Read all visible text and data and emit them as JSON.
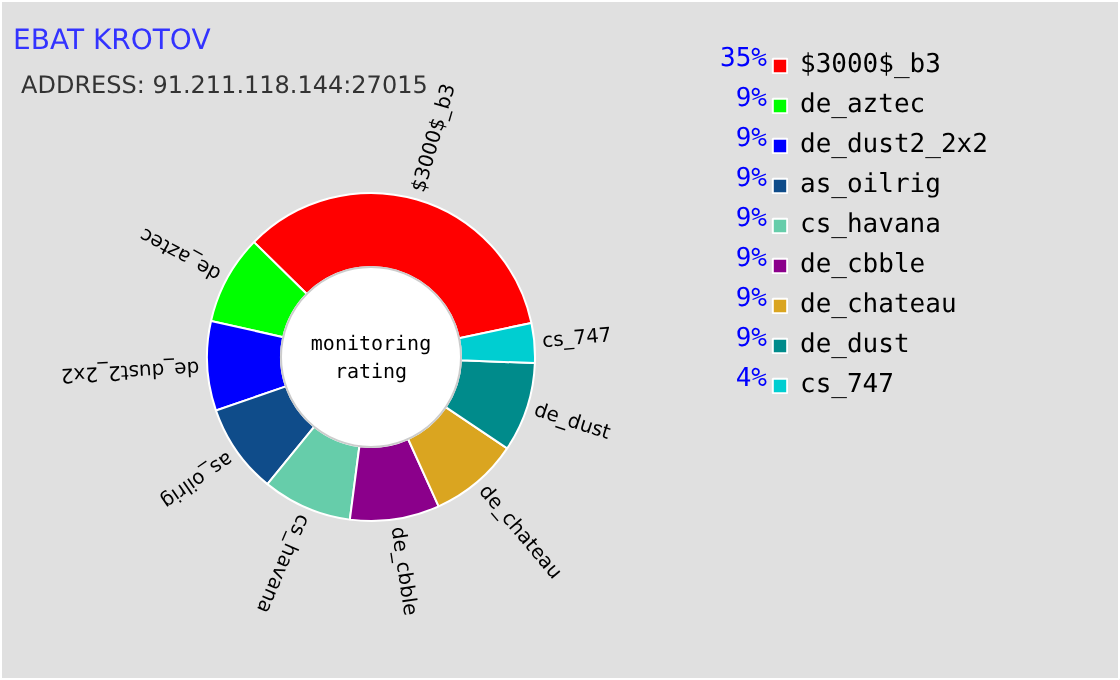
{
  "chart_data": {
    "type": "donut",
    "title": "EBAT KROTOV",
    "subtitle": "ADDRESS: 91.211.118.144:27015",
    "categories": [
      "$3000$_b3",
      "de_aztec",
      "de_dust2_2x2",
      "as_oilrig",
      "cs_havana",
      "de_cbble",
      "de_chateau",
      "de_dust",
      "cs_747"
    ],
    "values": [
      35,
      9,
      9,
      9,
      9,
      9,
      9,
      9,
      4
    ],
    "value_labels": [
      "35%",
      "9%",
      "9%",
      "9%",
      "9%",
      "9%",
      "9%",
      "9%",
      "4%"
    ],
    "colors": [
      "#ff0000",
      "#00ff00",
      "#0000ff",
      "#0f4c8a",
      "#66cdaa",
      "#8b008b",
      "#daa520",
      "#008b8b",
      "#00ced1"
    ],
    "annotations": [
      "monitoring",
      "rating"
    ],
    "legend": "right"
  }
}
